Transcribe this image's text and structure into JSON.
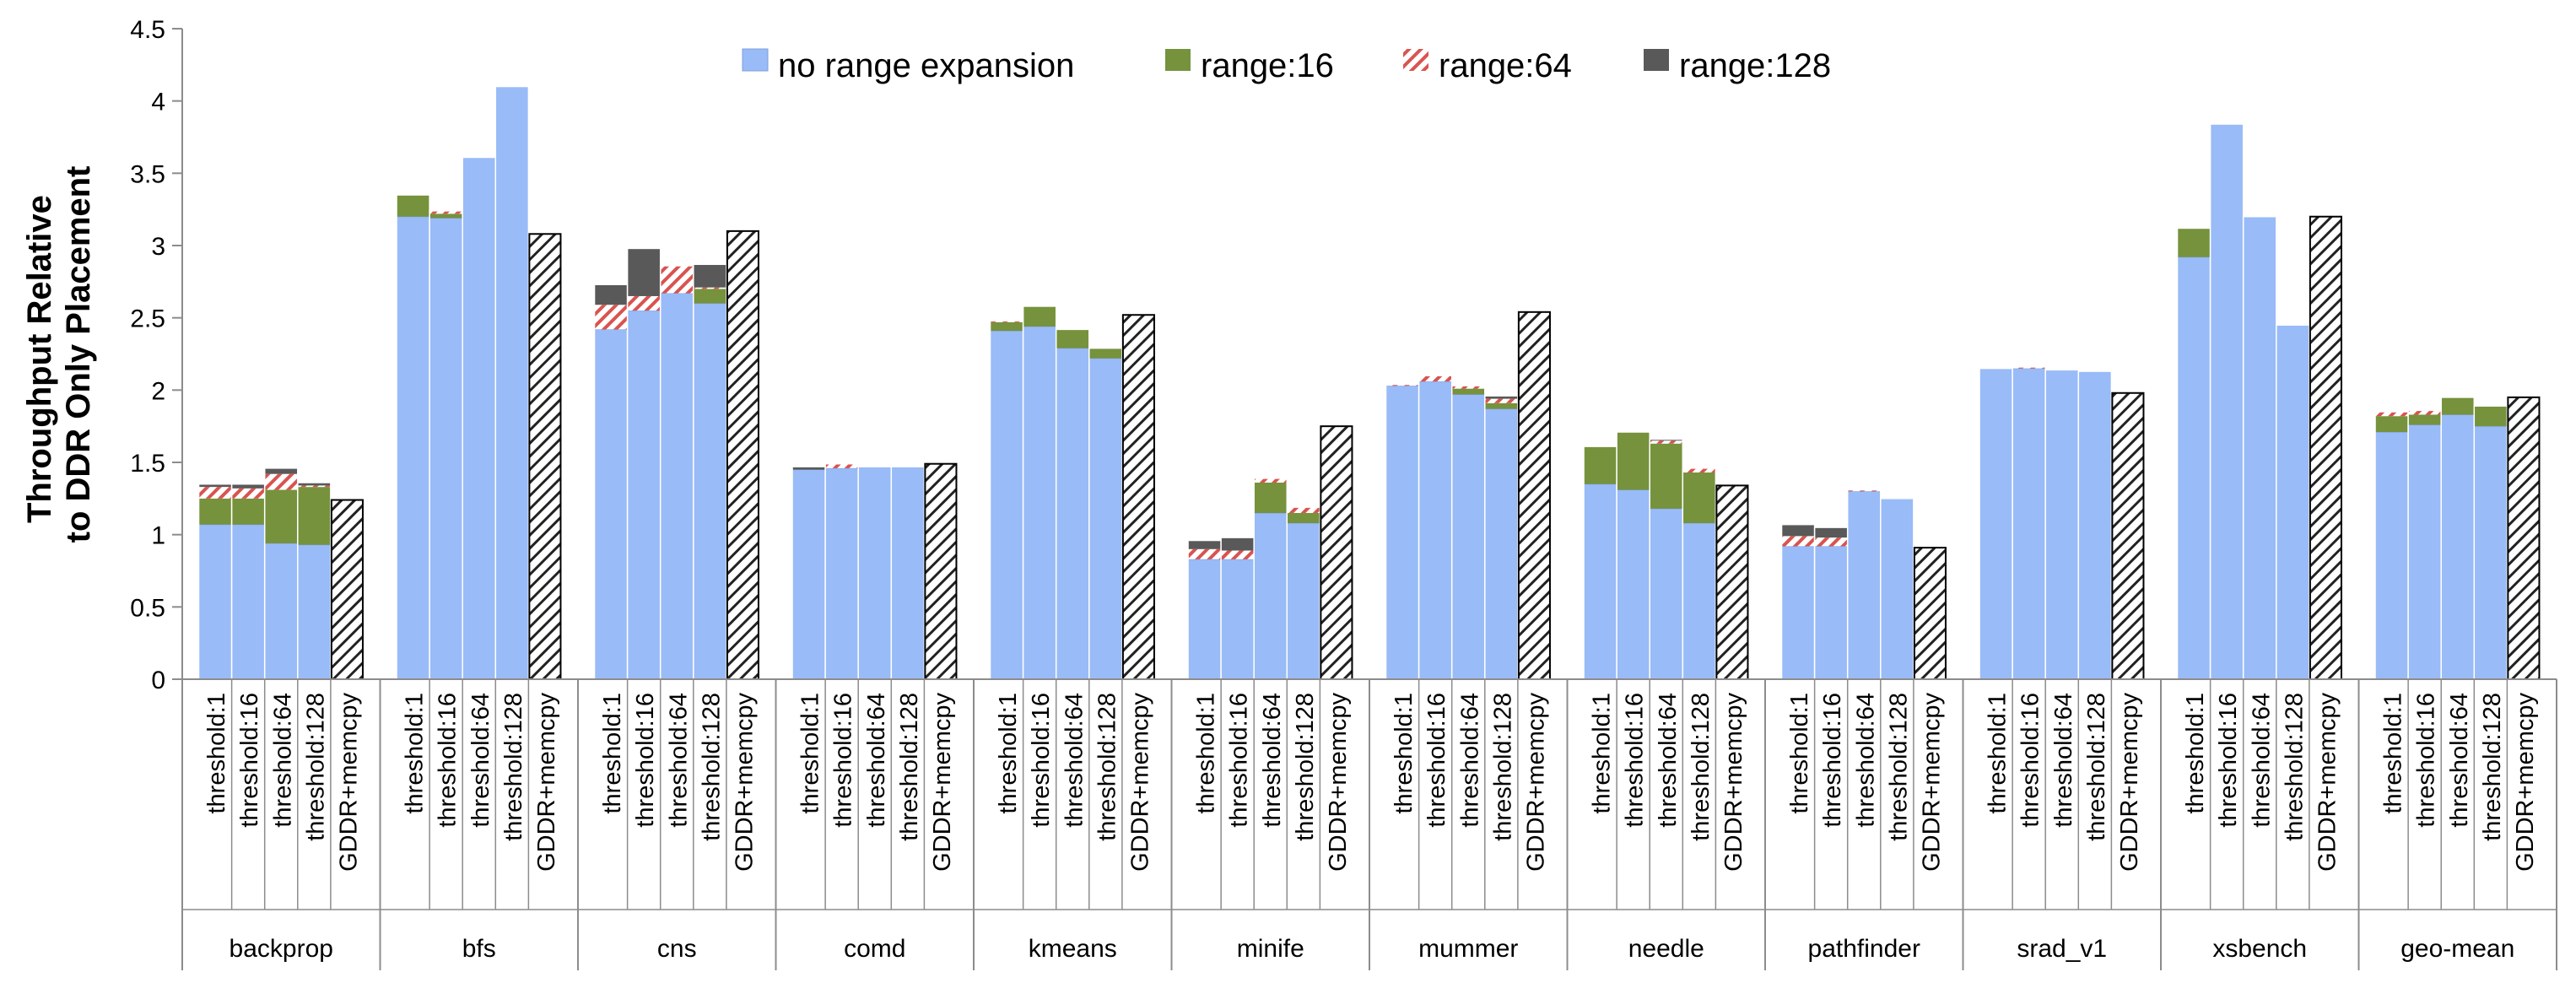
{
  "chart_data": {
    "type": "bar",
    "ylabel": [
      "Throughput Relative",
      "to DDR Only Placement"
    ],
    "ylim": [
      0,
      4.5
    ],
    "yticks": [
      "0",
      "0.5",
      "1",
      "1.5",
      "2",
      "2.5",
      "3",
      "3.5",
      "4",
      "4.5"
    ],
    "stacked": true,
    "legend_position": "top-center",
    "series": [
      {
        "name": "no range expansion",
        "color": "#99bbf7",
        "pattern": "solid"
      },
      {
        "name": "range:16",
        "color": "#76923c",
        "pattern": "solid"
      },
      {
        "name": "range:64",
        "color": "#d9534f",
        "pattern": "red-hatch"
      },
      {
        "name": "range:128",
        "color": "#595959",
        "pattern": "solid"
      }
    ],
    "memcpy_series": {
      "name": "GDDR+memcpy",
      "pattern": "black-hatch"
    },
    "bar_labels": [
      "threshold:1",
      "threshold:16",
      "threshold:64",
      "threshold:128",
      "GDDR+memcpy"
    ],
    "groups": [
      {
        "name": "backprop",
        "stacks": [
          [
            1.07,
            0.18,
            0.08,
            0.02
          ],
          [
            1.07,
            0.18,
            0.07,
            0.03
          ],
          [
            0.94,
            0.37,
            0.11,
            0.04
          ],
          [
            0.93,
            0.4,
            0.01,
            0.02
          ]
        ],
        "memcpy": 1.24
      },
      {
        "name": "bfs",
        "stacks": [
          [
            3.2,
            0.15,
            0,
            0
          ],
          [
            3.19,
            0.03,
            0.02,
            0
          ],
          [
            3.61,
            0,
            0,
            0
          ],
          [
            4.1,
            0,
            0,
            0
          ]
        ],
        "memcpy": 3.08
      },
      {
        "name": "cns",
        "stacks": [
          [
            2.42,
            0,
            0.17,
            0.14
          ],
          [
            2.55,
            0,
            0.1,
            0.33
          ],
          [
            2.67,
            0,
            0.19,
            0
          ],
          [
            2.6,
            0.1,
            0.01,
            0.16
          ]
        ],
        "memcpy": 3.1
      },
      {
        "name": "comd",
        "stacks": [
          [
            1.45,
            0,
            0,
            0.02
          ],
          [
            1.46,
            0,
            0.03,
            0
          ],
          [
            1.47,
            0,
            0,
            0
          ],
          [
            1.47,
            0,
            0,
            0
          ]
        ],
        "memcpy": 1.49
      },
      {
        "name": "kmeans",
        "stacks": [
          [
            2.41,
            0.06,
            0.01,
            0
          ],
          [
            2.44,
            0.14,
            0,
            0
          ],
          [
            2.29,
            0.13,
            0,
            0
          ],
          [
            2.22,
            0.07,
            0,
            0
          ]
        ],
        "memcpy": 2.52
      },
      {
        "name": "minife",
        "stacks": [
          [
            0.83,
            0,
            0.07,
            0.06
          ],
          [
            0.83,
            0,
            0.06,
            0.09
          ],
          [
            1.15,
            0.21,
            0.03,
            0
          ],
          [
            1.08,
            0.07,
            0.04,
            0
          ]
        ],
        "memcpy": 1.75
      },
      {
        "name": "mummer",
        "stacks": [
          [
            2.03,
            0,
            0.01,
            0
          ],
          [
            2.06,
            0,
            0.04,
            0
          ],
          [
            1.97,
            0.04,
            0.02,
            0
          ],
          [
            1.87,
            0.04,
            0.03,
            0.02
          ]
        ],
        "memcpy": 2.54
      },
      {
        "name": "needle",
        "stacks": [
          [
            1.35,
            0.26,
            0,
            0
          ],
          [
            1.31,
            0.4,
            0,
            0
          ],
          [
            1.18,
            0.45,
            0.02,
            0.01
          ],
          [
            1.08,
            0.35,
            0.03,
            0
          ]
        ],
        "memcpy": 1.34
      },
      {
        "name": "pathfinder",
        "stacks": [
          [
            0.92,
            0,
            0.07,
            0.08
          ],
          [
            0.92,
            0,
            0.06,
            0.07
          ],
          [
            1.3,
            0,
            0.01,
            0
          ],
          [
            1.25,
            0,
            0,
            0
          ]
        ],
        "memcpy": 0.91
      },
      {
        "name": "srad_v1",
        "stacks": [
          [
            2.15,
            0,
            0,
            0
          ],
          [
            2.15,
            0,
            0.01,
            0
          ],
          [
            2.14,
            0,
            0,
            0
          ],
          [
            2.13,
            0,
            0,
            0
          ]
        ],
        "memcpy": 1.98
      },
      {
        "name": "xsbench",
        "stacks": [
          [
            2.92,
            0.2,
            0,
            0
          ],
          [
            3.84,
            0,
            0,
            0
          ],
          [
            3.2,
            0,
            0,
            0
          ],
          [
            2.45,
            0,
            0,
            0
          ]
        ],
        "memcpy": 3.2
      },
      {
        "name": "geo-mean",
        "stacks": [
          [
            1.71,
            0.11,
            0.03,
            0
          ],
          [
            1.76,
            0.07,
            0.03,
            0
          ],
          [
            1.83,
            0.12,
            0,
            0
          ],
          [
            1.75,
            0.14,
            0,
            0
          ]
        ],
        "memcpy": 1.95
      }
    ]
  }
}
